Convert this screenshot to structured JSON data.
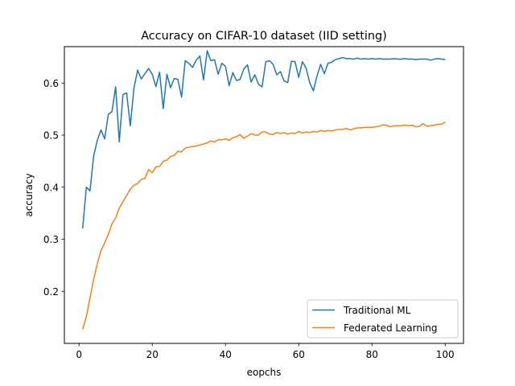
{
  "chart_data": {
    "type": "line",
    "title": "Accuracy on CIFAR-10 dataset (IID setting)",
    "xlabel": "eopchs",
    "ylabel": "accuracy",
    "xlim": [
      -4,
      105
    ],
    "ylim": [
      0.1,
      0.67
    ],
    "xticks": [
      0,
      20,
      40,
      60,
      80,
      100
    ],
    "yticks": [
      0.2,
      0.3,
      0.4,
      0.5,
      0.6
    ],
    "xtick_labels": [
      "0",
      "20",
      "40",
      "60",
      "80",
      "100"
    ],
    "ytick_labels": [
      "0.2",
      "0.3",
      "0.4",
      "0.5",
      "0.6"
    ],
    "grid": false,
    "legend_position": "lower right",
    "series": [
      {
        "name": "Traditional ML",
        "color": "#1f77b4",
        "x": [
          1,
          2,
          3,
          4,
          5,
          6,
          7,
          8,
          9,
          10,
          11,
          12,
          13,
          14,
          15,
          16,
          17,
          18,
          19,
          20,
          21,
          22,
          23,
          24,
          25,
          26,
          27,
          28,
          29,
          30,
          31,
          32,
          33,
          34,
          35,
          36,
          37,
          38,
          39,
          40,
          41,
          42,
          43,
          44,
          45,
          46,
          47,
          48,
          49,
          50,
          51,
          52,
          53,
          54,
          55,
          56,
          57,
          58,
          59,
          60,
          61,
          62,
          63,
          64,
          65,
          66,
          67,
          68,
          69,
          70,
          71,
          72,
          73,
          74,
          75,
          76,
          77,
          78,
          79,
          80,
          81,
          82,
          83,
          84,
          85,
          86,
          87,
          88,
          89,
          90,
          91,
          92,
          93,
          94,
          95,
          96,
          97,
          98,
          99,
          100
        ],
        "values": [
          0.321,
          0.4,
          0.393,
          0.46,
          0.49,
          0.51,
          0.493,
          0.54,
          0.545,
          0.593,
          0.487,
          0.578,
          0.581,
          0.518,
          0.59,
          0.625,
          0.608,
          0.618,
          0.628,
          0.617,
          0.593,
          0.621,
          0.551,
          0.617,
          0.591,
          0.609,
          0.607,
          0.573,
          0.643,
          0.638,
          0.63,
          0.644,
          0.652,
          0.606,
          0.662,
          0.643,
          0.645,
          0.617,
          0.638,
          0.632,
          0.595,
          0.62,
          0.605,
          0.607,
          0.627,
          0.635,
          0.602,
          0.616,
          0.598,
          0.593,
          0.641,
          0.643,
          0.636,
          0.616,
          0.622,
          0.604,
          0.601,
          0.642,
          0.641,
          0.611,
          0.641,
          0.629,
          0.601,
          0.585,
          0.614,
          0.636,
          0.618,
          0.638,
          0.64,
          0.645,
          0.647,
          0.649,
          0.647,
          0.647,
          0.646,
          0.648,
          0.646,
          0.647,
          0.646,
          0.647,
          0.646,
          0.647,
          0.646,
          0.646,
          0.646,
          0.647,
          0.646,
          0.646,
          0.647,
          0.646,
          0.646,
          0.645,
          0.646,
          0.646,
          0.646,
          0.644,
          0.646,
          0.647,
          0.646,
          0.645
        ]
      },
      {
        "name": "Federated Learning",
        "color": "#ff7f0e",
        "x": [
          1,
          2,
          3,
          4,
          5,
          6,
          7,
          8,
          9,
          10,
          11,
          12,
          13,
          14,
          15,
          16,
          17,
          18,
          19,
          20,
          21,
          22,
          23,
          24,
          25,
          26,
          27,
          28,
          29,
          30,
          31,
          32,
          33,
          34,
          35,
          36,
          37,
          38,
          39,
          40,
          41,
          42,
          43,
          44,
          45,
          46,
          47,
          48,
          49,
          50,
          51,
          52,
          53,
          54,
          55,
          56,
          57,
          58,
          59,
          60,
          61,
          62,
          63,
          64,
          65,
          66,
          67,
          68,
          69,
          70,
          71,
          72,
          73,
          74,
          75,
          76,
          77,
          78,
          79,
          80,
          81,
          82,
          83,
          84,
          85,
          86,
          87,
          88,
          89,
          90,
          91,
          92,
          93,
          94,
          95,
          96,
          97,
          98,
          99,
          100
        ],
        "values": [
          0.127,
          0.151,
          0.187,
          0.223,
          0.253,
          0.278,
          0.293,
          0.309,
          0.33,
          0.341,
          0.36,
          0.372,
          0.384,
          0.396,
          0.404,
          0.407,
          0.415,
          0.417,
          0.434,
          0.428,
          0.439,
          0.44,
          0.45,
          0.452,
          0.459,
          0.461,
          0.469,
          0.468,
          0.475,
          0.477,
          0.478,
          0.479,
          0.481,
          0.483,
          0.485,
          0.489,
          0.487,
          0.491,
          0.491,
          0.493,
          0.49,
          0.495,
          0.497,
          0.501,
          0.494,
          0.498,
          0.503,
          0.5,
          0.5,
          0.506,
          0.506,
          0.502,
          0.501,
          0.505,
          0.503,
          0.505,
          0.502,
          0.504,
          0.503,
          0.507,
          0.504,
          0.506,
          0.505,
          0.507,
          0.506,
          0.509,
          0.507,
          0.509,
          0.508,
          0.51,
          0.511,
          0.511,
          0.513,
          0.51,
          0.512,
          0.514,
          0.514,
          0.515,
          0.515,
          0.515,
          0.516,
          0.517,
          0.52,
          0.519,
          0.516,
          0.518,
          0.518,
          0.518,
          0.519,
          0.518,
          0.519,
          0.516,
          0.517,
          0.522,
          0.517,
          0.518,
          0.519,
          0.521,
          0.521,
          0.525
        ]
      }
    ]
  }
}
